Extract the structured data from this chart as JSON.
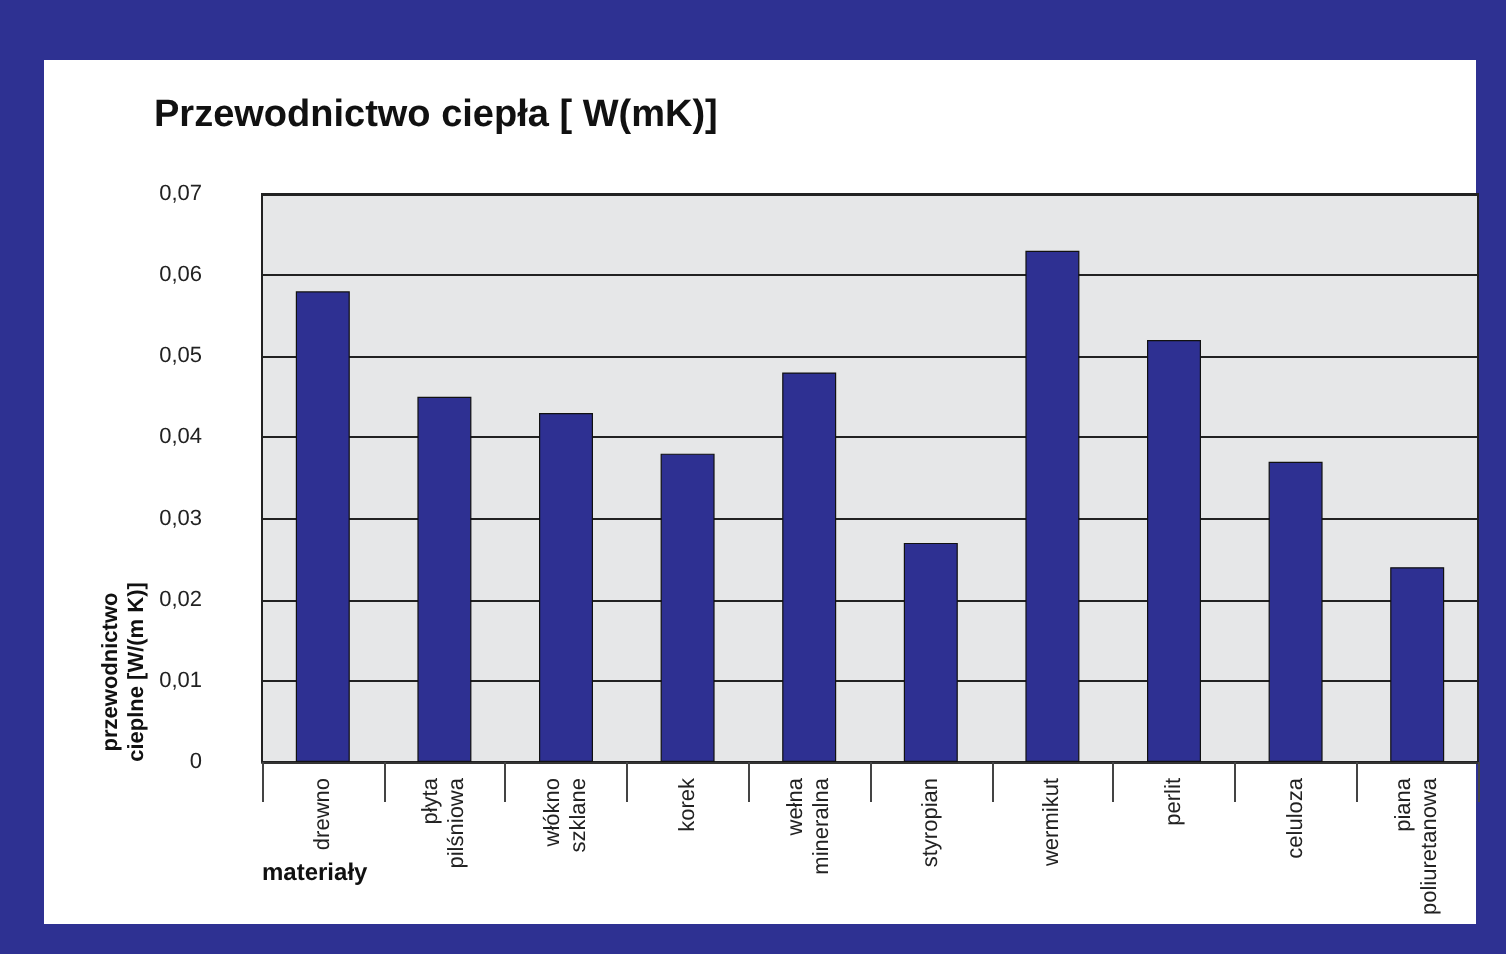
{
  "chart_data": {
    "type": "bar",
    "title": "Przewodnictwo ciepła [ W(mK)]",
    "xlabel": "materiały",
    "ylabel": "przewodnictwo cieplne [W/(m K)]",
    "categories": [
      "drewno",
      "płyta pilśniowa",
      "włókno szklane",
      "korek",
      "wełna mineralna",
      "styropian",
      "wermikut",
      "perlit",
      "celuloza",
      "piana poliuretanowa"
    ],
    "values": [
      0.058,
      0.045,
      0.043,
      0.038,
      0.048,
      0.027,
      0.063,
      0.052,
      0.037,
      0.024
    ],
    "color": "#2e3092",
    "ylim": [
      0,
      0.07
    ],
    "yticks": [
      0,
      {
        "value": 0.01,
        "label": "0,01"
      },
      {
        "value": 0.02,
        "label": "0,02"
      },
      {
        "value": 0.03,
        "label": "0,03"
      },
      {
        "value": 0.04,
        "label": "0,04"
      },
      {
        "value": 0.05,
        "label": "0,05"
      },
      {
        "value": 0.06,
        "label": "0,06"
      },
      {
        "value": 0.07,
        "label": "0,07"
      }
    ],
    "grid": "y"
  }
}
